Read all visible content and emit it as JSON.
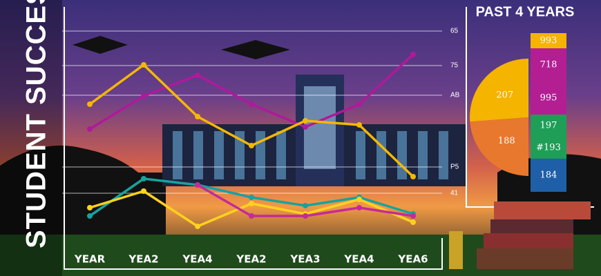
{
  "chart_data": {
    "type": "line",
    "title": "STUDENT SUCCESSS",
    "categories": [
      "YEAR",
      "YEA2",
      "YEA4",
      "YEA2",
      "YEA3",
      "YEA4",
      "YEA6"
    ],
    "ylim": [
      0,
      100
    ],
    "right_labels": [
      "65",
      "75",
      "AB",
      "P5",
      "41"
    ],
    "series": [
      {
        "name": "Purple",
        "color": "#b0199a",
        "values": [
          51,
          67,
          77,
          63,
          52,
          63,
          87
        ]
      },
      {
        "name": "Gold",
        "color": "#f5b800",
        "values": [
          63,
          82,
          57,
          43,
          55,
          53,
          28
        ]
      },
      {
        "name": "Teal",
        "color": "#16a3a0",
        "values": [
          9,
          27,
          24,
          18,
          14,
          18,
          10
        ]
      },
      {
        "name": "Yellow",
        "color": "#ffd21f",
        "values": [
          13,
          21,
          4,
          15,
          10,
          17,
          6
        ]
      },
      {
        "name": "Magenta",
        "color": "#c52a9a",
        "values": [
          null,
          null,
          24,
          9,
          9,
          13,
          9
        ]
      }
    ],
    "panel": {
      "title": "PAST 4 YEARS",
      "type": "pie",
      "values": [
        207,
        188
      ],
      "colors": [
        "#f4b400",
        "#e8782d"
      ],
      "blocks": [
        {
          "label": "993",
          "color": "#f4b400"
        },
        {
          "label": "718",
          "color": "#b31f93"
        },
        {
          "label": "995",
          "color": "#b31f93"
        },
        {
          "label": "197",
          "color": "#1e9e57"
        },
        {
          "label": "#193",
          "color": "#1e9e57"
        },
        {
          "label": "184",
          "color": "#1f5fa8"
        }
      ]
    }
  }
}
